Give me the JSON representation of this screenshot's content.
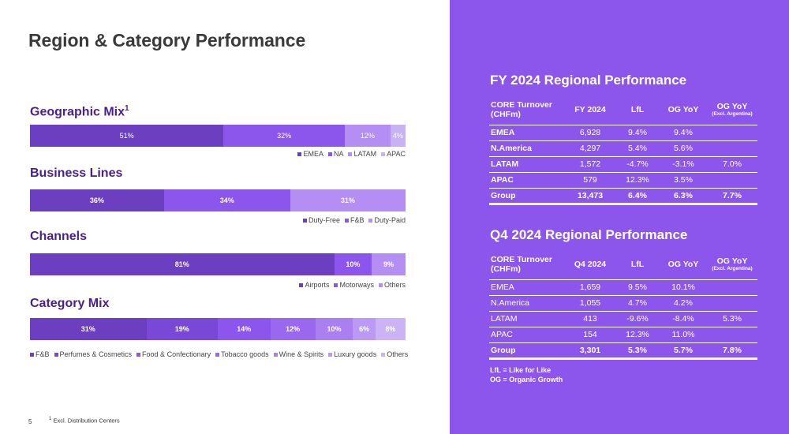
{
  "page": {
    "title": "Region & Category Performance",
    "page_number": "5",
    "footnote_mark": "1",
    "footnote_text": "Excl. Distribution Centers"
  },
  "colors": {
    "purple_dark": "#6b3fbf",
    "purple_mid": "#8c55ec",
    "purple_light": "#b48ef3",
    "purple_pale": "#c8b2f3",
    "right_panel": "#8c55ec",
    "heading": "#4a1f8f"
  },
  "chart_data": [
    {
      "type": "bar",
      "stacked": true,
      "orientation": "horizontal",
      "title": "Geographic Mix",
      "title_sup": "1",
      "categories": [
        "EMEA",
        "NA",
        "LATAM",
        "APAC"
      ],
      "values": [
        51,
        32,
        12,
        4
      ],
      "labels": [
        "51%",
        "32%",
        "12%",
        "4%"
      ],
      "colors": [
        "#6b3fbf",
        "#8c55ec",
        "#b48ef3",
        "#c8b2f3"
      ],
      "bold_labels": false,
      "legend_position": "bottom-right"
    },
    {
      "type": "bar",
      "stacked": true,
      "orientation": "horizontal",
      "title": "Business Lines",
      "categories": [
        "Duty-Free",
        "F&B",
        "Duty-Paid"
      ],
      "values": [
        36,
        34,
        31
      ],
      "labels": [
        "36%",
        "34%",
        "31%"
      ],
      "colors": [
        "#6b3fbf",
        "#8c55ec",
        "#b48ef3"
      ],
      "bold_labels": true,
      "legend_position": "bottom-right"
    },
    {
      "type": "bar",
      "stacked": true,
      "orientation": "horizontal",
      "title": "Channels",
      "categories": [
        "Airports",
        "Motorways",
        "Others"
      ],
      "values": [
        81,
        10,
        9
      ],
      "labels": [
        "81%",
        "10%",
        "9%"
      ],
      "colors": [
        "#6b3fbf",
        "#8c55ec",
        "#b48ef3"
      ],
      "bold_labels": true,
      "legend_position": "bottom-right"
    },
    {
      "type": "bar",
      "stacked": true,
      "orientation": "horizontal",
      "title": "Category Mix",
      "categories": [
        "F&B",
        "Perfumes & Cosmetics",
        "Food & Confectionary",
        "Tobacco goods",
        "Wine & Spirits",
        "Luxury goods",
        "Others"
      ],
      "values": [
        31,
        19,
        14,
        12,
        10,
        6,
        8
      ],
      "labels": [
        "31%",
        "19%",
        "14%",
        "12%",
        "10%",
        "6%",
        "8%"
      ],
      "colors": [
        "#6b3fbf",
        "#7a48d6",
        "#8c55ec",
        "#9a68ef",
        "#aa80f1",
        "#bb99f4",
        "#cbb3f6"
      ],
      "bold_labels": true,
      "legend_position": "bottom-left"
    }
  ],
  "fy_table": {
    "title": "FY 2024 Regional Performance",
    "headers": {
      "region": "CORE Turnover (CHFm)",
      "turnover": "FY 2024",
      "lfl": "LfL",
      "og": "OG YoY",
      "og_excl": "OG YoY",
      "og_excl_sub": "(Excl. Argentina)"
    },
    "rows": [
      {
        "region": "EMEA",
        "turnover": "6,928",
        "lfl": "9.4%",
        "og": "9.4%",
        "og_excl": ""
      },
      {
        "region": "N.America",
        "turnover": "4,297",
        "lfl": "5.4%",
        "og": "5.6%",
        "og_excl": ""
      },
      {
        "region": "LATAM",
        "turnover": "1,572",
        "lfl": "-4.7%",
        "og": "-3.1%",
        "og_excl": "7.0%"
      },
      {
        "region": "APAC",
        "turnover": "579",
        "lfl": "12.3%",
        "og": "3.5%",
        "og_excl": ""
      },
      {
        "region": "Group",
        "turnover": "13,473",
        "lfl": "6.4%",
        "og": "6.3%",
        "og_excl": "7.7%"
      }
    ]
  },
  "q4_table": {
    "title": "Q4 2024 Regional Performance",
    "headers": {
      "region": "CORE Turnover (CHFm)",
      "turnover": "Q4 2024",
      "lfl": "LfL",
      "og": "OG YoY",
      "og_excl": "OG YoY",
      "og_excl_sub": "(Excl. Argentina)"
    },
    "rows": [
      {
        "region": "EMEA",
        "turnover": "1,659",
        "lfl": "9.5%",
        "og": "10.1%",
        "og_excl": ""
      },
      {
        "region": "N.America",
        "turnover": "1,055",
        "lfl": "4.7%",
        "og": "4.2%",
        "og_excl": ""
      },
      {
        "region": "LATAM",
        "turnover": "413",
        "lfl": "-9.6%",
        "og": "-8.4%",
        "og_excl": "5.3%"
      },
      {
        "region": "APAC",
        "turnover": "154",
        "lfl": "12.3%",
        "og": "11.0%",
        "og_excl": ""
      },
      {
        "region": "Group",
        "turnover": "3,301",
        "lfl": "5.3%",
        "og": "5.7%",
        "og_excl": "7.8%"
      }
    ]
  },
  "notes": {
    "lfl": "LfL = Like for Like",
    "og": "OG = Organic Growth"
  }
}
